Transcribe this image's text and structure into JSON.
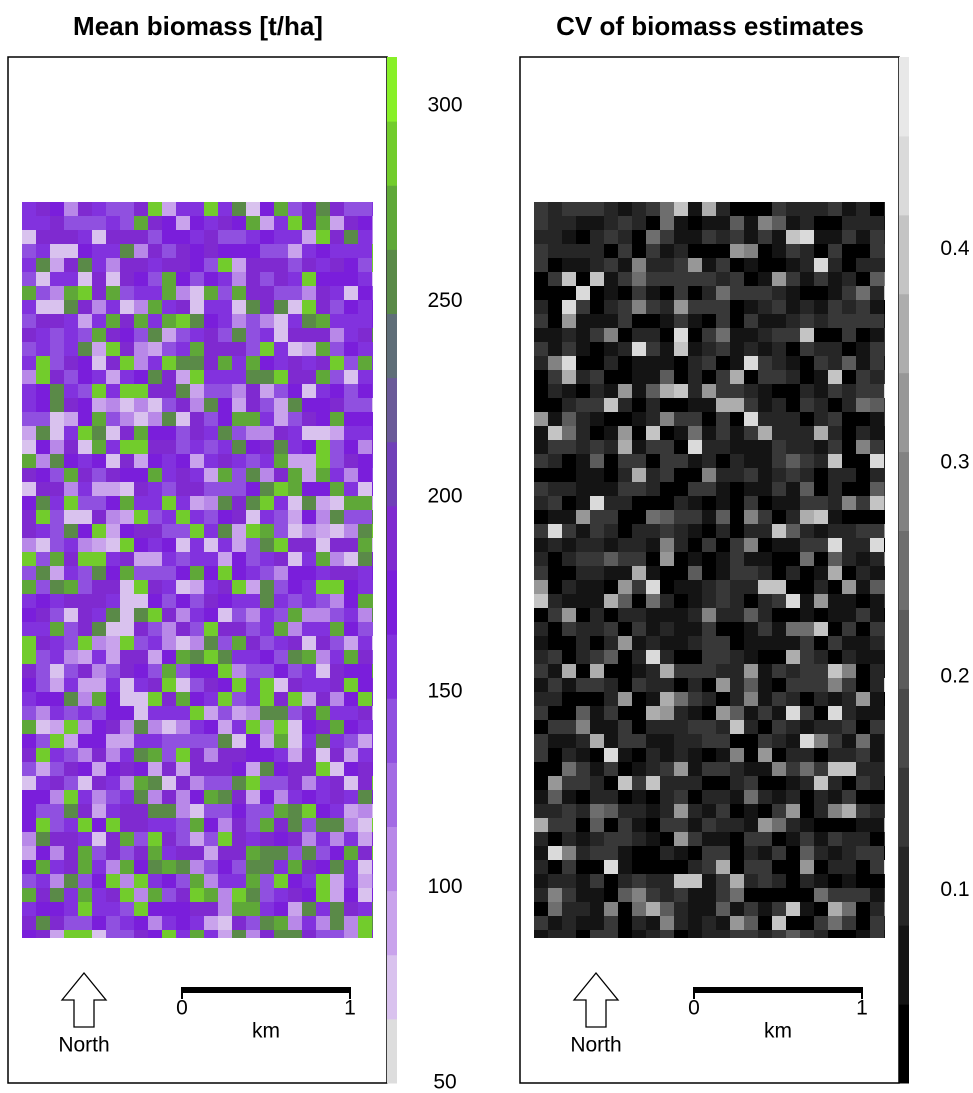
{
  "panels": [
    {
      "title": "Mean biomass [t/ha]",
      "colorbar": {
        "lim": [
          50,
          312.5
        ],
        "ticks": [
          50,
          100,
          150,
          200,
          250,
          300
        ],
        "colors": [
          "#dddddd",
          "#d9c2ee",
          "#c9a3ec",
          "#b888e8",
          "#a36be4",
          "#9050e0",
          "#8232de",
          "#7a1edb",
          "#7f2ad0",
          "#7040b8",
          "#6a5a98",
          "#5f6e78",
          "#5a8a48",
          "#5fa838",
          "#72cc2c",
          "#88f028"
        ]
      },
      "north_label": "North",
      "scale_bar": {
        "ticks": [
          0,
          1
        ],
        "unit": "km"
      }
    },
    {
      "title": "CV of biomass estimates",
      "colorbar": {
        "lim": [
          0.01,
          0.49
        ],
        "ticks": [
          0.1,
          0.2,
          0.3,
          0.4
        ],
        "colors": [
          "#000000",
          "#141414",
          "#262626",
          "#383838",
          "#4a4a4a",
          "#5c5c5c",
          "#6e6e6e",
          "#828282",
          "#979797",
          "#adadad",
          "#c4c4c4",
          "#dadada",
          "#e8e8e8"
        ]
      },
      "north_label": "North",
      "scale_bar": {
        "ticks": [
          0,
          1
        ],
        "unit": "km"
      }
    }
  ]
}
